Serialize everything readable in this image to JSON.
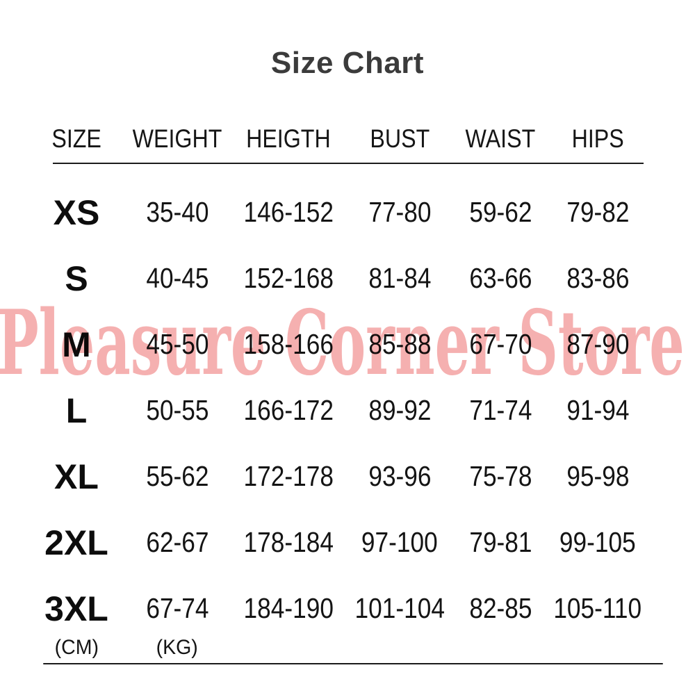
{
  "page": {
    "title": "Size Chart"
  },
  "watermark": {
    "text": "Pleasure Corner Store",
    "color": "#f5b0b0"
  },
  "colors": {
    "title_text": "#3b3b3b",
    "table_text": "#141414",
    "rule": "#1b1b1b"
  },
  "chart_data": {
    "type": "table",
    "title": "Size Chart",
    "columns": [
      "SIZE",
      "WEIGHT",
      "HEIGTH",
      "BUST",
      "WAIST",
      "HIPS"
    ],
    "rows": [
      {
        "size": "XS",
        "weight": "35-40",
        "height": "146-152",
        "bust": "77-80",
        "waist": "59-62",
        "hips": "79-82"
      },
      {
        "size": "S",
        "weight": "40-45",
        "height": "152-168",
        "bust": "81-84",
        "waist": "63-66",
        "hips": "83-86"
      },
      {
        "size": "M",
        "weight": "45-50",
        "height": "158-166",
        "bust": "85-88",
        "waist": "67-70",
        "hips": "87-90"
      },
      {
        "size": "L",
        "weight": "50-55",
        "height": "166-172",
        "bust": "89-92",
        "waist": "71-74",
        "hips": "91-94"
      },
      {
        "size": "XL",
        "weight": "55-62",
        "height": "172-178",
        "bust": "93-96",
        "waist": "75-78",
        "hips": "95-98"
      },
      {
        "size": "2XL",
        "weight": "62-67",
        "height": "178-184",
        "bust": "97-100",
        "waist": "79-81",
        "hips": "99-105"
      },
      {
        "size": "3XL",
        "weight": "67-74",
        "height": "184-190",
        "bust": "101-104",
        "waist": "82-85",
        "hips": "105-110"
      }
    ],
    "unit_labels": {
      "size_column": "(CM)",
      "weight_column": "(KG)"
    },
    "layout": {
      "grid": "off",
      "header_underline": true,
      "bottom_underline": true
    }
  }
}
